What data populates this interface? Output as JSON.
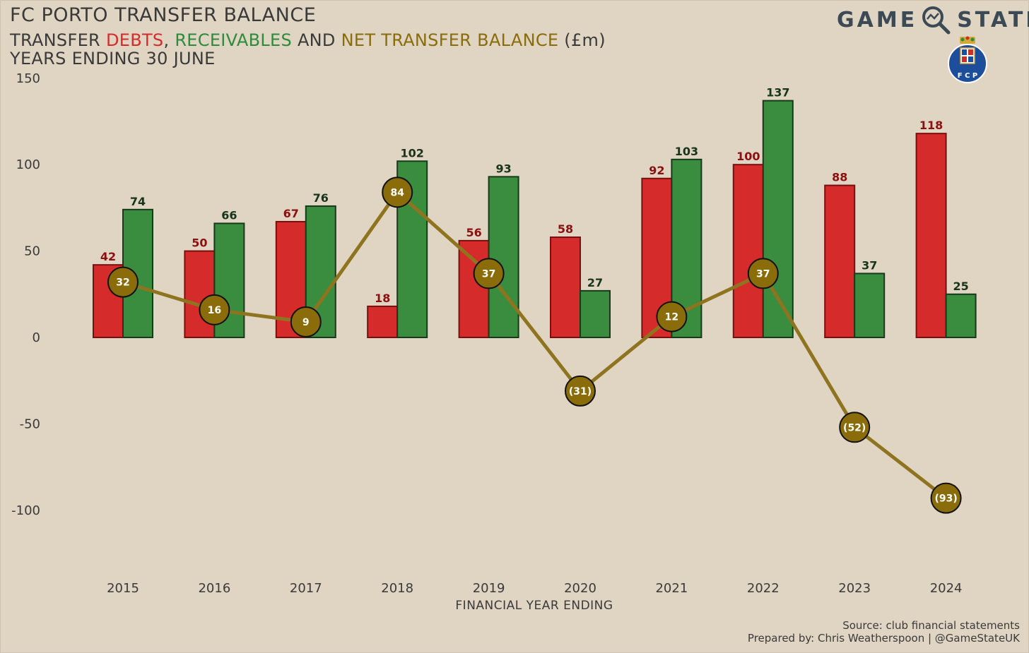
{
  "header": {
    "title": "FC PORTO TRANSFER BALANCE",
    "subtitle_parts": [
      "TRANSFER ",
      "DEBTS",
      ", ",
      "RECEIVABLES",
      " AND ",
      "NET TRANSFER BALANCE",
      " (£m)"
    ],
    "subtitle_line2": "YEARS ENDING 30 JUNE",
    "brand_left": "GAME",
    "brand_right": "STATE"
  },
  "logo": {
    "club_crest_text": "F C P"
  },
  "footer": {
    "source": "Source: club financial statements",
    "prepared": "Prepared by: Chris Weatherspoon | @GameStateUK"
  },
  "colors": {
    "background": "#e0d4c3",
    "debts": "#d62b2b",
    "debts_label": "#8b1010",
    "receivables": "#3a8c3e",
    "receivables_label": "#17351a",
    "net": "#8a6d0a",
    "net_line": "#8f7420",
    "text": "#3a3a3a"
  },
  "chart_data": {
    "type": "bar",
    "xlabel": "FINANCIAL YEAR ENDING",
    "ylabel": "",
    "ylim": [
      -140,
      150
    ],
    "yticks": [
      150,
      100,
      50,
      0,
      -50,
      -100
    ],
    "grid": false,
    "categories": [
      "2015",
      "2016",
      "2017",
      "2018",
      "2019",
      "2020",
      "2021",
      "2022",
      "2023",
      "2024"
    ],
    "series": [
      {
        "name": "DEBTS",
        "type": "bar",
        "values": [
          42,
          50,
          67,
          18,
          56,
          58,
          92,
          100,
          88,
          118
        ]
      },
      {
        "name": "RECEIVABLES",
        "type": "bar",
        "values": [
          74,
          66,
          76,
          102,
          93,
          27,
          103,
          137,
          37,
          25
        ]
      },
      {
        "name": "NET TRANSFER BALANCE",
        "type": "line",
        "values": [
          32,
          16,
          9,
          84,
          37,
          -31,
          12,
          37,
          -52,
          -93
        ],
        "labels": [
          "32",
          "16",
          "9",
          "84",
          "37",
          "(31)",
          "12",
          "37",
          "(52)",
          "(93)"
        ]
      }
    ]
  }
}
